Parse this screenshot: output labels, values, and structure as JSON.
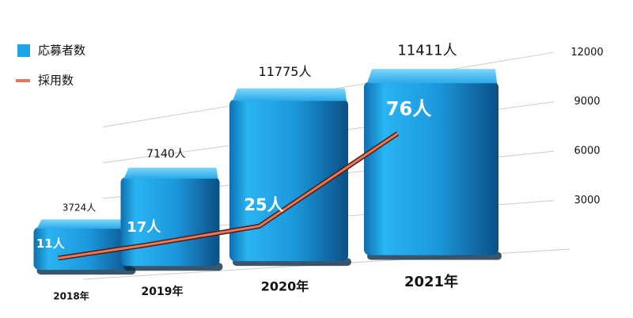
{
  "chart_data": {
    "type": "bar",
    "categories": [
      "2018年",
      "2019年",
      "2020年",
      "2021年"
    ],
    "series": [
      {
        "name": "応募者数",
        "color": "#1aa6ea",
        "values": [
          3724,
          7140,
          11775,
          11411
        ],
        "value_labels": [
          "3724人",
          "7140人",
          "11775人",
          "11411人"
        ]
      },
      {
        "name": "採用数",
        "type": "line",
        "axis": "y2",
        "color": "#e8765a",
        "values": [
          11,
          17,
          25,
          76
        ],
        "value_labels": [
          "11人",
          "17人",
          "25人",
          "76人"
        ]
      }
    ],
    "ylim": [
      0,
      12000
    ],
    "yticks": [
      3000,
      6000,
      9000,
      12000
    ],
    "y2lim": [
      0,
      110
    ],
    "grid": true,
    "legend": "top-left"
  }
}
